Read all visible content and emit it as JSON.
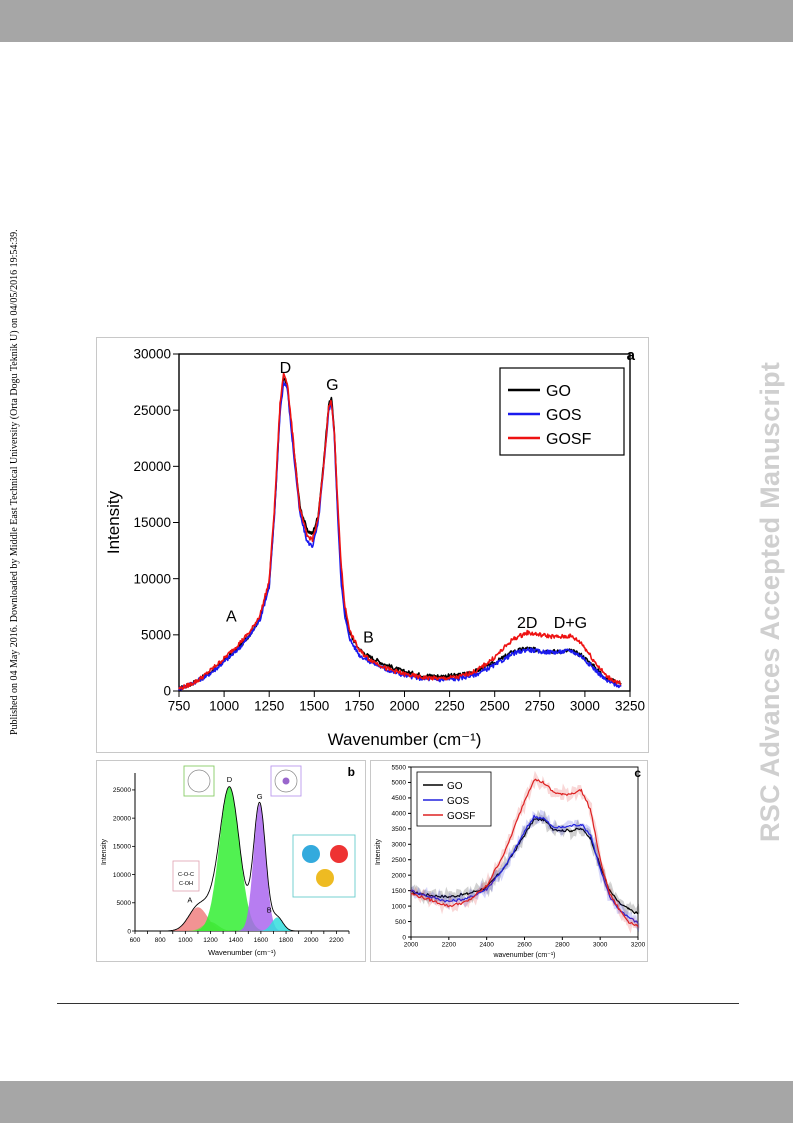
{
  "side_note": "Published on 04 May 2016. Downloaded by Middle East Technical University (Orta Dogu Teknik U) on 04/05/2016 19:54:39.",
  "watermark": "RSC Advances Accepted Manuscript",
  "chart_data": [
    {
      "panel": "a",
      "type": "line",
      "xlabel": "Wavenumber (cm⁻¹)",
      "ylabel": "Intensity",
      "xlim": [
        750,
        3250
      ],
      "ylim": [
        0,
        30000
      ],
      "xticks": [
        750,
        1000,
        1250,
        1500,
        1750,
        2000,
        2250,
        2500,
        2750,
        3000,
        3250
      ],
      "yticks": [
        0,
        5000,
        10000,
        15000,
        20000,
        25000,
        30000
      ],
      "legend": "top-right",
      "annotations": [
        {
          "label": "D",
          "x": 1340,
          "y": 28300
        },
        {
          "label": "G",
          "x": 1600,
          "y": 26800
        },
        {
          "label": "A",
          "x": 1040,
          "y": 6200
        },
        {
          "label": "B",
          "x": 1800,
          "y": 4300
        },
        {
          "label": "2D",
          "x": 2680,
          "y": 5600
        },
        {
          "label": "D+G",
          "x": 2920,
          "y": 5600
        }
      ],
      "series": [
        {
          "name": "GO",
          "color": "#000000",
          "points": [
            [
              750,
              200
            ],
            [
              800,
              500
            ],
            [
              850,
              900
            ],
            [
              900,
              1400
            ],
            [
              950,
              2000
            ],
            [
              1000,
              2700
            ],
            [
              1050,
              3400
            ],
            [
              1100,
              4200
            ],
            [
              1150,
              5200
            ],
            [
              1200,
              6500
            ],
            [
              1250,
              9500
            ],
            [
              1280,
              16000
            ],
            [
              1310,
              25000
            ],
            [
              1330,
              27800
            ],
            [
              1350,
              27200
            ],
            [
              1380,
              22500
            ],
            [
              1420,
              16500
            ],
            [
              1460,
              14300
            ],
            [
              1490,
              14000
            ],
            [
              1520,
              15500
            ],
            [
              1550,
              20000
            ],
            [
              1580,
              25500
            ],
            [
              1595,
              26000
            ],
            [
              1610,
              23500
            ],
            [
              1630,
              16000
            ],
            [
              1650,
              10000
            ],
            [
              1670,
              7000
            ],
            [
              1700,
              5000
            ],
            [
              1750,
              3700
            ],
            [
              1800,
              3100
            ],
            [
              1900,
              2300
            ],
            [
              2000,
              1700
            ],
            [
              2100,
              1400
            ],
            [
              2200,
              1300
            ],
            [
              2300,
              1400
            ],
            [
              2400,
              1800
            ],
            [
              2500,
              2500
            ],
            [
              2600,
              3500
            ],
            [
              2680,
              3800
            ],
            [
              2750,
              3600
            ],
            [
              2850,
              3500
            ],
            [
              2920,
              3600
            ],
            [
              2980,
              3200
            ],
            [
              3050,
              2200
            ],
            [
              3120,
              1100
            ],
            [
              3200,
              700
            ]
          ]
        },
        {
          "name": "GOS",
          "color": "#1a1aee",
          "points": [
            [
              750,
              200
            ],
            [
              800,
              500
            ],
            [
              850,
              900
            ],
            [
              900,
              1300
            ],
            [
              950,
              1900
            ],
            [
              1000,
              2600
            ],
            [
              1050,
              3300
            ],
            [
              1100,
              4100
            ],
            [
              1150,
              5100
            ],
            [
              1200,
              6400
            ],
            [
              1250,
              9300
            ],
            [
              1280,
              15800
            ],
            [
              1310,
              24800
            ],
            [
              1330,
              27500
            ],
            [
              1350,
              27000
            ],
            [
              1380,
              22000
            ],
            [
              1420,
              15800
            ],
            [
              1460,
              13300
            ],
            [
              1490,
              12900
            ],
            [
              1520,
              14800
            ],
            [
              1550,
              19500
            ],
            [
              1580,
              25000
            ],
            [
              1595,
              25700
            ],
            [
              1610,
              23000
            ],
            [
              1630,
              15500
            ],
            [
              1650,
              9500
            ],
            [
              1670,
              6500
            ],
            [
              1700,
              4500
            ],
            [
              1750,
              3200
            ],
            [
              1800,
              2700
            ],
            [
              1900,
              1900
            ],
            [
              2000,
              1400
            ],
            [
              2100,
              1100
            ],
            [
              2200,
              1000
            ],
            [
              2300,
              1100
            ],
            [
              2400,
              1500
            ],
            [
              2500,
              2300
            ],
            [
              2600,
              3300
            ],
            [
              2680,
              3700
            ],
            [
              2750,
              3500
            ],
            [
              2850,
              3450
            ],
            [
              2920,
              3600
            ],
            [
              2980,
              3100
            ],
            [
              3050,
              2000
            ],
            [
              3120,
              900
            ],
            [
              3200,
              400
            ]
          ]
        },
        {
          "name": "GOSF",
          "color": "#ee1111",
          "points": [
            [
              750,
              200
            ],
            [
              800,
              500
            ],
            [
              850,
              900
            ],
            [
              900,
              1500
            ],
            [
              950,
              2200
            ],
            [
              1000,
              2900
            ],
            [
              1050,
              3700
            ],
            [
              1100,
              4500
            ],
            [
              1150,
              5400
            ],
            [
              1200,
              6800
            ],
            [
              1250,
              9800
            ],
            [
              1280,
              16500
            ],
            [
              1310,
              25500
            ],
            [
              1330,
              28300
            ],
            [
              1350,
              27500
            ],
            [
              1380,
              22800
            ],
            [
              1420,
              16200
            ],
            [
              1460,
              13800
            ],
            [
              1490,
              13500
            ],
            [
              1520,
              15200
            ],
            [
              1550,
              19800
            ],
            [
              1580,
              25300
            ],
            [
              1595,
              25800
            ],
            [
              1610,
              23300
            ],
            [
              1630,
              16500
            ],
            [
              1650,
              11000
            ],
            [
              1670,
              7500
            ],
            [
              1700,
              5200
            ],
            [
              1750,
              3600
            ],
            [
              1800,
              2900
            ],
            [
              1900,
              2000
            ],
            [
              2000,
              1500
            ],
            [
              2100,
              1200
            ],
            [
              2200,
              1100
            ],
            [
              2300,
              1250
            ],
            [
              2400,
              1800
            ],
            [
              2500,
              3000
            ],
            [
              2600,
              4600
            ],
            [
              2680,
              5200
            ],
            [
              2750,
              5000
            ],
            [
              2850,
              4800
            ],
            [
              2920,
              4900
            ],
            [
              2980,
              4300
            ],
            [
              3050,
              2700
            ],
            [
              3120,
              1300
            ],
            [
              3200,
              600
            ]
          ]
        }
      ]
    },
    {
      "panel": "b",
      "type": "area",
      "xlabel": "Wavenumber (cm⁻¹)",
      "ylabel": "Intensity",
      "xlim": [
        600,
        2300
      ],
      "ylim": [
        0,
        28000
      ],
      "xticks": [
        600,
        700,
        800,
        900,
        1000,
        1100,
        1200,
        1300,
        1400,
        1500,
        1600,
        1700,
        1800,
        1900,
        2000,
        2100,
        2200,
        2300
      ],
      "xtick_labels": [
        "600",
        "",
        "800",
        "",
        "1000",
        "",
        "1200",
        "",
        "1400",
        "",
        "1600",
        "",
        "1800",
        "",
        "2000",
        "",
        "2200",
        ""
      ],
      "yticks": [
        0,
        5000,
        10000,
        15000,
        20000,
        25000
      ],
      "peaks": [
        {
          "label": "A",
          "center": 1100,
          "height": 4200,
          "sigma": 75,
          "color": "#f08080"
        },
        {
          "label": "",
          "center": 1200,
          "height": 1600,
          "sigma": 60,
          "color": "#88cc55"
        },
        {
          "label": "D",
          "center": 1350,
          "height": 25500,
          "sigma": 80,
          "color": "#33ee33"
        },
        {
          "label": "G",
          "center": 1590,
          "height": 22500,
          "sigma": 48,
          "color": "#aa66ee"
        },
        {
          "label": "B",
          "center": 1730,
          "height": 2400,
          "sigma": 45,
          "color": "#33dddd"
        }
      ],
      "inset_labels": [
        "C-O-C",
        "C-OH"
      ]
    },
    {
      "panel": "c",
      "type": "line",
      "xlabel": "wavenumber (cm⁻¹)",
      "ylabel": "Intensity",
      "xlim": [
        2000,
        3200
      ],
      "ylim": [
        0,
        5500
      ],
      "xticks": [
        2000,
        2200,
        2400,
        2600,
        2800,
        3000,
        3200
      ],
      "yticks": [
        0,
        500,
        1000,
        1500,
        2000,
        2500,
        3000,
        3500,
        4000,
        4500,
        5000,
        5500
      ],
      "legend": "top-left",
      "series": [
        {
          "name": "GO",
          "color": "#000000",
          "points": [
            [
              2000,
              1450
            ],
            [
              2100,
              1350
            ],
            [
              2200,
              1300
            ],
            [
              2300,
              1400
            ],
            [
              2400,
              1600
            ],
            [
              2500,
              2300
            ],
            [
              2600,
              3300
            ],
            [
              2650,
              3800
            ],
            [
              2700,
              3800
            ],
            [
              2750,
              3500
            ],
            [
              2800,
              3450
            ],
            [
              2850,
              3450
            ],
            [
              2900,
              3500
            ],
            [
              2950,
              3200
            ],
            [
              3000,
              2300
            ],
            [
              3050,
              1500
            ],
            [
              3100,
              1100
            ],
            [
              3150,
              900
            ],
            [
              3200,
              750
            ]
          ]
        },
        {
          "name": "GOS",
          "color": "#2222dd",
          "points": [
            [
              2000,
              1500
            ],
            [
              2100,
              1300
            ],
            [
              2200,
              1150
            ],
            [
              2300,
              1250
            ],
            [
              2400,
              1550
            ],
            [
              2500,
              2300
            ],
            [
              2600,
              3400
            ],
            [
              2650,
              3900
            ],
            [
              2700,
              3850
            ],
            [
              2750,
              3550
            ],
            [
              2800,
              3550
            ],
            [
              2850,
              3600
            ],
            [
              2900,
              3650
            ],
            [
              2950,
              3300
            ],
            [
              3000,
              2200
            ],
            [
              3050,
              1300
            ],
            [
              3100,
              900
            ],
            [
              3150,
              650
            ],
            [
              3200,
              450
            ]
          ]
        },
        {
          "name": "GOSF",
          "color": "#dd2222",
          "points": [
            [
              2000,
              1400
            ],
            [
              2100,
              1200
            ],
            [
              2200,
              1000
            ],
            [
              2300,
              1150
            ],
            [
              2400,
              1650
            ],
            [
              2500,
              2800
            ],
            [
              2600,
              4400
            ],
            [
              2650,
              5100
            ],
            [
              2700,
              5000
            ],
            [
              2750,
              4700
            ],
            [
              2800,
              4600
            ],
            [
              2850,
              4650
            ],
            [
              2900,
              4750
            ],
            [
              2950,
              4100
            ],
            [
              3000,
              2500
            ],
            [
              3050,
              1400
            ],
            [
              3100,
              900
            ],
            [
              3150,
              500
            ],
            [
              3200,
              350
            ]
          ]
        }
      ]
    }
  ]
}
